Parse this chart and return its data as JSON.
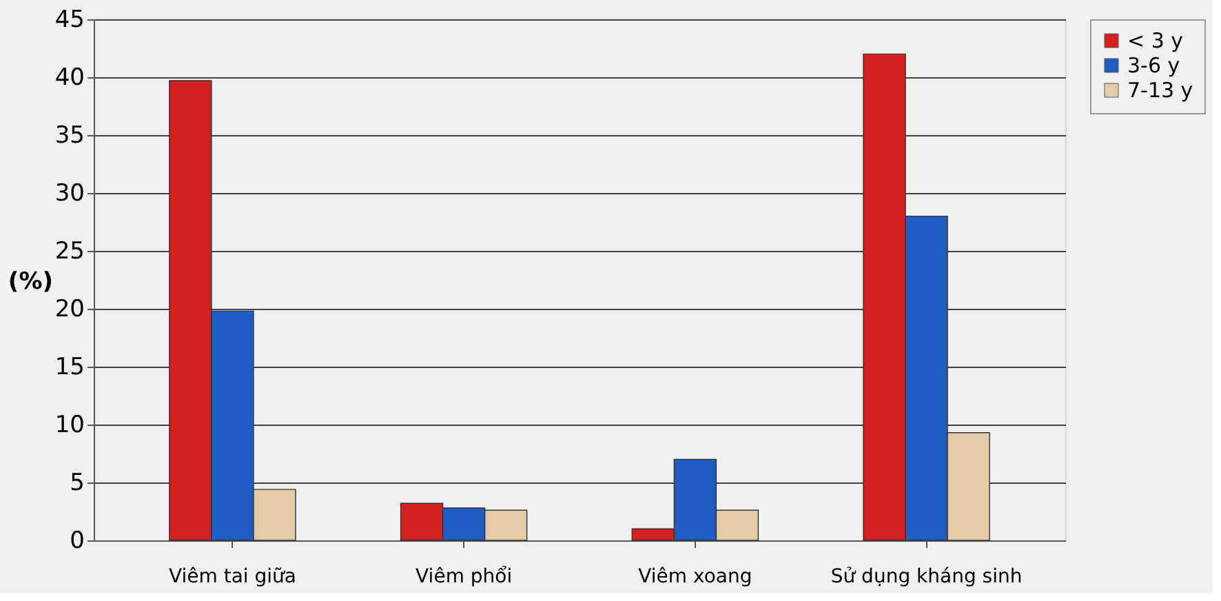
{
  "chart_data": {
    "type": "bar",
    "ylabel": "(%)",
    "categories": [
      "Viêm tai giữa",
      "Viêm phổi",
      "Viêm xoang",
      "Sử dụng kháng sinh"
    ],
    "series": [
      {
        "name": "< 3 y",
        "color": "#d42020",
        "values": [
          39.7,
          3.2,
          1.0,
          42.0
        ]
      },
      {
        "name": "3-6 y",
        "color": "#1f5cc4",
        "values": [
          19.8,
          2.8,
          7.0,
          28.0
        ]
      },
      {
        "name": "7-13 y",
        "color": "#e2cba6",
        "values": [
          4.4,
          2.6,
          2.6,
          9.3
        ]
      }
    ],
    "ylim": [
      0,
      45
    ],
    "yticks": [
      0,
      5,
      10,
      15,
      20,
      25,
      30,
      35,
      40,
      45
    ],
    "grid": "y",
    "legend": "right"
  }
}
